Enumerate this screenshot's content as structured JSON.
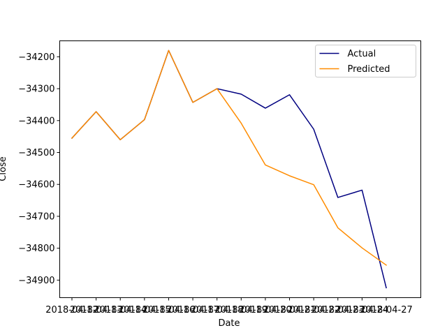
{
  "chart_data": {
    "type": "line",
    "title": "",
    "xlabel": "Date",
    "ylabel": "Close",
    "x": [
      "2018-04-12",
      "2018-04-13",
      "2018-04-14",
      "2018-04-15",
      "2018-04-16",
      "2018-04-17",
      "2018-04-18",
      "2018-04-19",
      "2018-04-20",
      "2018-04-21",
      "2018-04-22",
      "2018-04-23",
      "2018-04-24",
      "2018-04-27"
    ],
    "x_tick_labels": [
      "2018-04-12",
      "2018-04-13",
      "2018-04-14",
      "2018-04-15",
      "2018-04-16",
      "2018-04-17",
      "2018-04-18",
      "2018-04-19",
      "2018-04-20",
      "2018-04-21",
      "2018-04-22",
      "2018-04-23",
      "2018-04-24",
      "2018-04-27"
    ],
    "yticks": [
      -34900,
      -34800,
      -34700,
      -34600,
      -34500,
      -34400,
      -34300,
      -34200
    ],
    "ylim": [
      -34955,
      -34150
    ],
    "grid": false,
    "legend_position": "top-right",
    "series": [
      {
        "name": "Actual",
        "color": "#000080",
        "values": [
          -34455,
          -34372,
          -34460,
          -34397,
          -34180,
          -34343,
          -34300,
          -34317,
          -34361,
          -34319,
          -34427,
          -34641,
          -34618,
          -34924
        ]
      },
      {
        "name": "Predicted",
        "color": "#ff8c00",
        "values": [
          -34455,
          -34372,
          -34460,
          -34397,
          -34180,
          -34343,
          -34300,
          -34408,
          -34539,
          -34573,
          -34601,
          -34736,
          -34799,
          -34853
        ]
      }
    ]
  }
}
